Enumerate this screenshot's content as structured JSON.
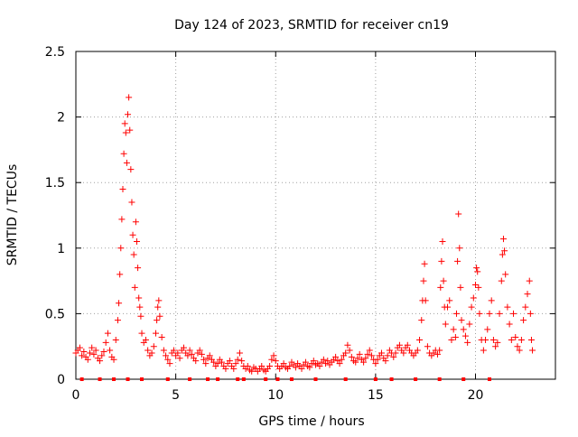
{
  "chart_data": {
    "type": "scatter",
    "title": "Day 124 of 2023, SRMTID for receiver cn19",
    "xlabel": "GPS time / hours",
    "ylabel": "SRMTID / TECUs",
    "xlim": [
      0,
      24
    ],
    "ylim": [
      0,
      2.5
    ],
    "x_ticks": [
      0,
      5,
      10,
      15,
      20
    ],
    "x_tick_labels": [
      "0",
      "5",
      "10",
      "15",
      "20"
    ],
    "y_ticks": [
      0,
      0.5,
      1,
      1.5,
      2,
      2.5
    ],
    "y_tick_labels": [
      "0",
      "0.5",
      "1",
      "1.5",
      "2",
      "2.5"
    ],
    "grid": true,
    "marker": "+",
    "color": "#ff0000",
    "series": [
      {
        "name": "SRMTID",
        "points": [
          [
            0.0,
            0.2
          ],
          [
            0.1,
            0.22
          ],
          [
            0.2,
            0.24
          ],
          [
            0.3,
            0.18
          ],
          [
            0.4,
            0.21
          ],
          [
            0.5,
            0.17
          ],
          [
            0.6,
            0.15
          ],
          [
            0.7,
            0.2
          ],
          [
            0.8,
            0.24
          ],
          [
            0.9,
            0.19
          ],
          [
            1.0,
            0.22
          ],
          [
            1.1,
            0.16
          ],
          [
            1.2,
            0.14
          ],
          [
            1.3,
            0.18
          ],
          [
            1.4,
            0.21
          ],
          [
            1.5,
            0.28
          ],
          [
            1.6,
            0.35
          ],
          [
            1.7,
            0.22
          ],
          [
            1.8,
            0.17
          ],
          [
            1.9,
            0.15
          ],
          [
            2.0,
            0.3
          ],
          [
            2.1,
            0.45
          ],
          [
            2.15,
            0.58
          ],
          [
            2.2,
            0.8
          ],
          [
            2.25,
            1.0
          ],
          [
            2.3,
            1.22
          ],
          [
            2.35,
            1.45
          ],
          [
            2.4,
            1.72
          ],
          [
            2.45,
            1.95
          ],
          [
            2.5,
            1.88
          ],
          [
            2.55,
            1.65
          ],
          [
            2.6,
            2.02
          ],
          [
            2.65,
            2.15
          ],
          [
            2.7,
            1.9
          ],
          [
            2.75,
            1.6
          ],
          [
            2.8,
            1.35
          ],
          [
            2.85,
            1.1
          ],
          [
            2.9,
            0.95
          ],
          [
            2.95,
            0.7
          ],
          [
            3.0,
            1.2
          ],
          [
            3.05,
            1.05
          ],
          [
            3.1,
            0.85
          ],
          [
            3.15,
            0.62
          ],
          [
            3.2,
            0.55
          ],
          [
            3.25,
            0.48
          ],
          [
            3.3,
            0.35
          ],
          [
            3.4,
            0.28
          ],
          [
            3.5,
            0.3
          ],
          [
            3.6,
            0.22
          ],
          [
            3.7,
            0.18
          ],
          [
            3.8,
            0.2
          ],
          [
            3.9,
            0.25
          ],
          [
            4.0,
            0.35
          ],
          [
            4.05,
            0.45
          ],
          [
            4.1,
            0.55
          ],
          [
            4.15,
            0.6
          ],
          [
            4.2,
            0.48
          ],
          [
            4.3,
            0.32
          ],
          [
            4.4,
            0.22
          ],
          [
            4.5,
            0.18
          ],
          [
            4.6,
            0.15
          ],
          [
            4.7,
            0.12
          ],
          [
            4.8,
            0.2
          ],
          [
            4.9,
            0.22
          ],
          [
            5.0,
            0.18
          ],
          [
            5.1,
            0.2
          ],
          [
            5.2,
            0.16
          ],
          [
            5.3,
            0.22
          ],
          [
            5.4,
            0.24
          ],
          [
            5.5,
            0.2
          ],
          [
            5.6,
            0.18
          ],
          [
            5.7,
            0.22
          ],
          [
            5.8,
            0.19
          ],
          [
            5.9,
            0.16
          ],
          [
            6.0,
            0.14
          ],
          [
            6.1,
            0.2
          ],
          [
            6.2,
            0.22
          ],
          [
            6.3,
            0.19
          ],
          [
            6.4,
            0.15
          ],
          [
            6.5,
            0.12
          ],
          [
            6.6,
            0.16
          ],
          [
            6.7,
            0.18
          ],
          [
            6.8,
            0.15
          ],
          [
            6.9,
            0.13
          ],
          [
            7.0,
            0.1
          ],
          [
            7.1,
            0.12
          ],
          [
            7.2,
            0.15
          ],
          [
            7.3,
            0.13
          ],
          [
            7.4,
            0.1
          ],
          [
            7.5,
            0.08
          ],
          [
            7.6,
            0.12
          ],
          [
            7.7,
            0.14
          ],
          [
            7.8,
            0.1
          ],
          [
            7.9,
            0.08
          ],
          [
            8.0,
            0.12
          ],
          [
            8.1,
            0.15
          ],
          [
            8.2,
            0.2
          ],
          [
            8.3,
            0.14
          ],
          [
            8.4,
            0.1
          ],
          [
            8.5,
            0.08
          ],
          [
            8.6,
            0.1
          ],
          [
            8.7,
            0.07
          ],
          [
            8.8,
            0.06
          ],
          [
            8.9,
            0.09
          ],
          [
            9.0,
            0.08
          ],
          [
            9.1,
            0.06
          ],
          [
            9.2,
            0.08
          ],
          [
            9.3,
            0.1
          ],
          [
            9.4,
            0.07
          ],
          [
            9.5,
            0.06
          ],
          [
            9.6,
            0.08
          ],
          [
            9.7,
            0.1
          ],
          [
            9.8,
            0.15
          ],
          [
            9.9,
            0.18
          ],
          [
            10.0,
            0.14
          ],
          [
            10.1,
            0.1
          ],
          [
            10.2,
            0.08
          ],
          [
            10.3,
            0.1
          ],
          [
            10.4,
            0.12
          ],
          [
            10.5,
            0.09
          ],
          [
            10.6,
            0.08
          ],
          [
            10.7,
            0.1
          ],
          [
            10.8,
            0.13
          ],
          [
            10.9,
            0.11
          ],
          [
            11.0,
            0.09
          ],
          [
            11.1,
            0.12
          ],
          [
            11.2,
            0.1
          ],
          [
            11.3,
            0.08
          ],
          [
            11.4,
            0.11
          ],
          [
            11.5,
            0.13
          ],
          [
            11.6,
            0.1
          ],
          [
            11.7,
            0.09
          ],
          [
            11.8,
            0.12
          ],
          [
            11.9,
            0.14
          ],
          [
            12.0,
            0.11
          ],
          [
            12.1,
            0.12
          ],
          [
            12.2,
            0.1
          ],
          [
            12.3,
            0.13
          ],
          [
            12.4,
            0.15
          ],
          [
            12.5,
            0.12
          ],
          [
            12.6,
            0.14
          ],
          [
            12.7,
            0.11
          ],
          [
            12.8,
            0.13
          ],
          [
            12.9,
            0.15
          ],
          [
            13.0,
            0.17
          ],
          [
            13.1,
            0.14
          ],
          [
            13.2,
            0.12
          ],
          [
            13.3,
            0.15
          ],
          [
            13.4,
            0.18
          ],
          [
            13.5,
            0.2
          ],
          [
            13.6,
            0.26
          ],
          [
            13.7,
            0.22
          ],
          [
            13.8,
            0.17
          ],
          [
            13.9,
            0.14
          ],
          [
            14.0,
            0.13
          ],
          [
            14.1,
            0.16
          ],
          [
            14.2,
            0.19
          ],
          [
            14.3,
            0.15
          ],
          [
            14.4,
            0.13
          ],
          [
            14.5,
            0.16
          ],
          [
            14.6,
            0.19
          ],
          [
            14.7,
            0.22
          ],
          [
            14.8,
            0.18
          ],
          [
            14.9,
            0.15
          ],
          [
            15.0,
            0.12
          ],
          [
            15.1,
            0.15
          ],
          [
            15.2,
            0.18
          ],
          [
            15.3,
            0.2
          ],
          [
            15.4,
            0.16
          ],
          [
            15.5,
            0.14
          ],
          [
            15.6,
            0.18
          ],
          [
            15.7,
            0.22
          ],
          [
            15.8,
            0.2
          ],
          [
            15.9,
            0.17
          ],
          [
            16.0,
            0.2
          ],
          [
            16.1,
            0.24
          ],
          [
            16.2,
            0.26
          ],
          [
            16.3,
            0.22
          ],
          [
            16.4,
            0.2
          ],
          [
            16.5,
            0.24
          ],
          [
            16.6,
            0.26
          ],
          [
            16.7,
            0.22
          ],
          [
            16.8,
            0.2
          ],
          [
            16.9,
            0.18
          ],
          [
            17.0,
            0.2
          ],
          [
            17.1,
            0.22
          ],
          [
            17.2,
            0.3
          ],
          [
            17.3,
            0.45
          ],
          [
            17.35,
            0.6
          ],
          [
            17.4,
            0.75
          ],
          [
            17.45,
            0.88
          ],
          [
            17.5,
            0.6
          ],
          [
            17.6,
            0.25
          ],
          [
            17.7,
            0.2
          ],
          [
            17.8,
            0.18
          ],
          [
            17.9,
            0.2
          ],
          [
            18.0,
            0.22
          ],
          [
            18.1,
            0.19
          ],
          [
            18.2,
            0.22
          ],
          [
            18.25,
            0.7
          ],
          [
            18.3,
            0.9
          ],
          [
            18.35,
            1.05
          ],
          [
            18.4,
            0.75
          ],
          [
            18.45,
            0.55
          ],
          [
            18.5,
            0.42
          ],
          [
            18.6,
            0.55
          ],
          [
            18.7,
            0.6
          ],
          [
            18.8,
            0.3
          ],
          [
            18.9,
            0.38
          ],
          [
            19.0,
            0.32
          ],
          [
            19.05,
            0.5
          ],
          [
            19.1,
            0.9
          ],
          [
            19.15,
            1.26
          ],
          [
            19.2,
            1.0
          ],
          [
            19.25,
            0.7
          ],
          [
            19.3,
            0.45
          ],
          [
            19.4,
            0.38
          ],
          [
            19.5,
            0.33
          ],
          [
            19.6,
            0.28
          ],
          [
            19.7,
            0.42
          ],
          [
            19.8,
            0.55
          ],
          [
            19.9,
            0.62
          ],
          [
            20.0,
            0.72
          ],
          [
            20.05,
            0.85
          ],
          [
            20.1,
            0.82
          ],
          [
            20.15,
            0.7
          ],
          [
            20.2,
            0.5
          ],
          [
            20.3,
            0.3
          ],
          [
            20.4,
            0.22
          ],
          [
            20.5,
            0.3
          ],
          [
            20.6,
            0.38
          ],
          [
            20.7,
            0.5
          ],
          [
            20.8,
            0.6
          ],
          [
            20.9,
            0.3
          ],
          [
            21.0,
            0.25
          ],
          [
            21.1,
            0.28
          ],
          [
            21.2,
            0.5
          ],
          [
            21.3,
            0.75
          ],
          [
            21.35,
            0.95
          ],
          [
            21.4,
            1.07
          ],
          [
            21.45,
            0.98
          ],
          [
            21.5,
            0.8
          ],
          [
            21.6,
            0.55
          ],
          [
            21.7,
            0.42
          ],
          [
            21.8,
            0.3
          ],
          [
            21.9,
            0.5
          ],
          [
            22.0,
            0.32
          ],
          [
            22.1,
            0.25
          ],
          [
            22.2,
            0.22
          ],
          [
            22.3,
            0.3
          ],
          [
            22.4,
            0.45
          ],
          [
            22.5,
            0.55
          ],
          [
            22.6,
            0.65
          ],
          [
            22.7,
            0.75
          ],
          [
            22.75,
            0.5
          ],
          [
            22.8,
            0.3
          ],
          [
            22.85,
            0.22
          ]
        ]
      }
    ],
    "baseline_markers": [
      0.3,
      1.2,
      1.9,
      2.6,
      3.3,
      4.6,
      5.7,
      6.6,
      7.1,
      8.1,
      8.4,
      9.5,
      10.1,
      10.8,
      12.0,
      13.5,
      15.0,
      15.8,
      17.0,
      18.2,
      19.4,
      20.7
    ]
  }
}
